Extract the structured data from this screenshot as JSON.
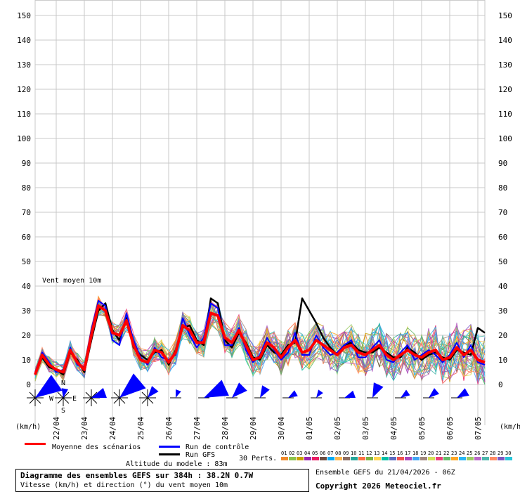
{
  "chart_data": {
    "type": "line",
    "annotation": "Vent moyen 10m",
    "ylim": [
      0,
      150
    ],
    "yticks": [
      0,
      10,
      20,
      30,
      40,
      50,
      60,
      70,
      80,
      90,
      100,
      110,
      120,
      130,
      140,
      150
    ],
    "x_date_labels": [
      "22/04",
      "23/04",
      "24/04",
      "25/04",
      "26/04",
      "27/04",
      "28/04",
      "29/04",
      "30/04",
      "01/05",
      "02/05",
      "03/05",
      "04/05",
      "05/05",
      "06/05",
      "07/05"
    ],
    "units_left": "(km/h)",
    "units_right": "(km/h)",
    "time_steps": 65,
    "series": [
      {
        "name": "Moyenne des scénarios",
        "color": "#ff0000",
        "values": [
          4,
          12,
          8,
          6,
          5,
          14,
          9,
          6,
          20,
          32,
          30,
          21,
          20,
          26,
          16,
          10,
          9,
          14,
          13,
          9,
          13,
          24,
          22,
          17,
          17,
          29,
          28,
          19,
          17,
          22,
          16,
          10,
          11,
          17,
          15,
          11,
          15,
          18,
          13,
          14,
          18,
          16,
          14,
          12,
          15,
          16,
          13,
          12,
          14,
          16,
          12,
          10,
          12,
          14,
          12,
          11,
          13,
          14,
          10,
          11,
          15,
          12,
          14,
          10,
          9
        ]
      },
      {
        "name": "Run de contrôle",
        "color": "#0000ff",
        "values": [
          5,
          13,
          9,
          5,
          6,
          15,
          8,
          7,
          22,
          34,
          32,
          18,
          16,
          29,
          18,
          11,
          8,
          15,
          11,
          10,
          12,
          27,
          20,
          15,
          19,
          33,
          31,
          16,
          16,
          23,
          14,
          9,
          12,
          19,
          14,
          10,
          13,
          21,
          12,
          12,
          20,
          15,
          12,
          13,
          16,
          18,
          11,
          11,
          15,
          18,
          10,
          9,
          13,
          16,
          10,
          12,
          14,
          12,
          9,
          12,
          17,
          11,
          16,
          9,
          8
        ]
      },
      {
        "name": "Run GFS",
        "color": "#000000",
        "values": [
          4,
          11,
          7,
          6,
          4,
          13,
          10,
          5,
          18,
          30,
          33,
          22,
          18,
          27,
          15,
          12,
          10,
          13,
          14,
          8,
          14,
          23,
          24,
          18,
          16,
          35,
          33,
          18,
          15,
          21,
          17,
          11,
          10,
          16,
          13,
          12,
          16,
          17,
          35,
          30,
          25,
          19,
          15,
          12,
          16,
          17,
          14,
          13,
          13,
          15,
          13,
          11,
          11,
          15,
          13,
          10,
          12,
          13,
          11,
          10,
          14,
          13,
          12,
          23,
          21
        ]
      }
    ],
    "members": [
      {
        "name": "01",
        "color": "#f08a2c"
      },
      {
        "name": "02",
        "color": "#8bc34a"
      },
      {
        "name": "03",
        "color": "#c8a000"
      },
      {
        "name": "04",
        "color": "#9c27b0"
      },
      {
        "name": "05",
        "color": "#e91e63"
      },
      {
        "name": "06",
        "color": "#6d4c41"
      },
      {
        "name": "07",
        "color": "#03a9f4"
      },
      {
        "name": "08",
        "color": "#ffb74d"
      },
      {
        "name": "09",
        "color": "#8d6e63"
      },
      {
        "name": "10",
        "color": "#26a69a"
      },
      {
        "name": "11",
        "color": "#ff7043"
      },
      {
        "name": "12",
        "color": "#7cb342"
      },
      {
        "name": "13",
        "color": "#ffd54f"
      },
      {
        "name": "14",
        "color": "#00bfa5"
      },
      {
        "name": "15",
        "color": "#5c6bc0"
      },
      {
        "name": "16",
        "color": "#ef5350"
      },
      {
        "name": "17",
        "color": "#ab47bc"
      },
      {
        "name": "18",
        "color": "#42a5f5"
      },
      {
        "name": "19",
        "color": "#a1887f"
      },
      {
        "name": "20",
        "color": "#d4e157"
      },
      {
        "name": "21",
        "color": "#ec407a"
      },
      {
        "name": "22",
        "color": "#66bb6a"
      },
      {
        "name": "23",
        "color": "#ffa726"
      },
      {
        "name": "24",
        "color": "#29b6f6"
      },
      {
        "name": "25",
        "color": "#9ccc65"
      },
      {
        "name": "26",
        "color": "#ba68c8"
      },
      {
        "name": "27",
        "color": "#4db6ac"
      },
      {
        "name": "28",
        "color": "#ff8a65"
      },
      {
        "name": "29",
        "color": "#7e57c2"
      },
      {
        "name": "30",
        "color": "#26c6da"
      }
    ],
    "wind_rose_labels": {
      "n": "N",
      "w": "W",
      "e": "E",
      "s": "S"
    }
  },
  "legend": {
    "mean": "Moyenne des scénarios",
    "control": "Run de contrôle",
    "gfs": "Run GFS",
    "perts": "30 Perts.",
    "model_altitude": "Altitude du modele : 83m"
  },
  "footer": {
    "title": "Diagramme des ensembles GEFS sur 384h : 38.2N 0.7W",
    "subtitle": "Vitesse (km/h) et direction (°) du vent moyen 10m",
    "ensemble_info": "Ensemble GEFS du 21/04/2026 - 06Z",
    "copyright": "Copyright 2026 Meteociel.fr"
  }
}
